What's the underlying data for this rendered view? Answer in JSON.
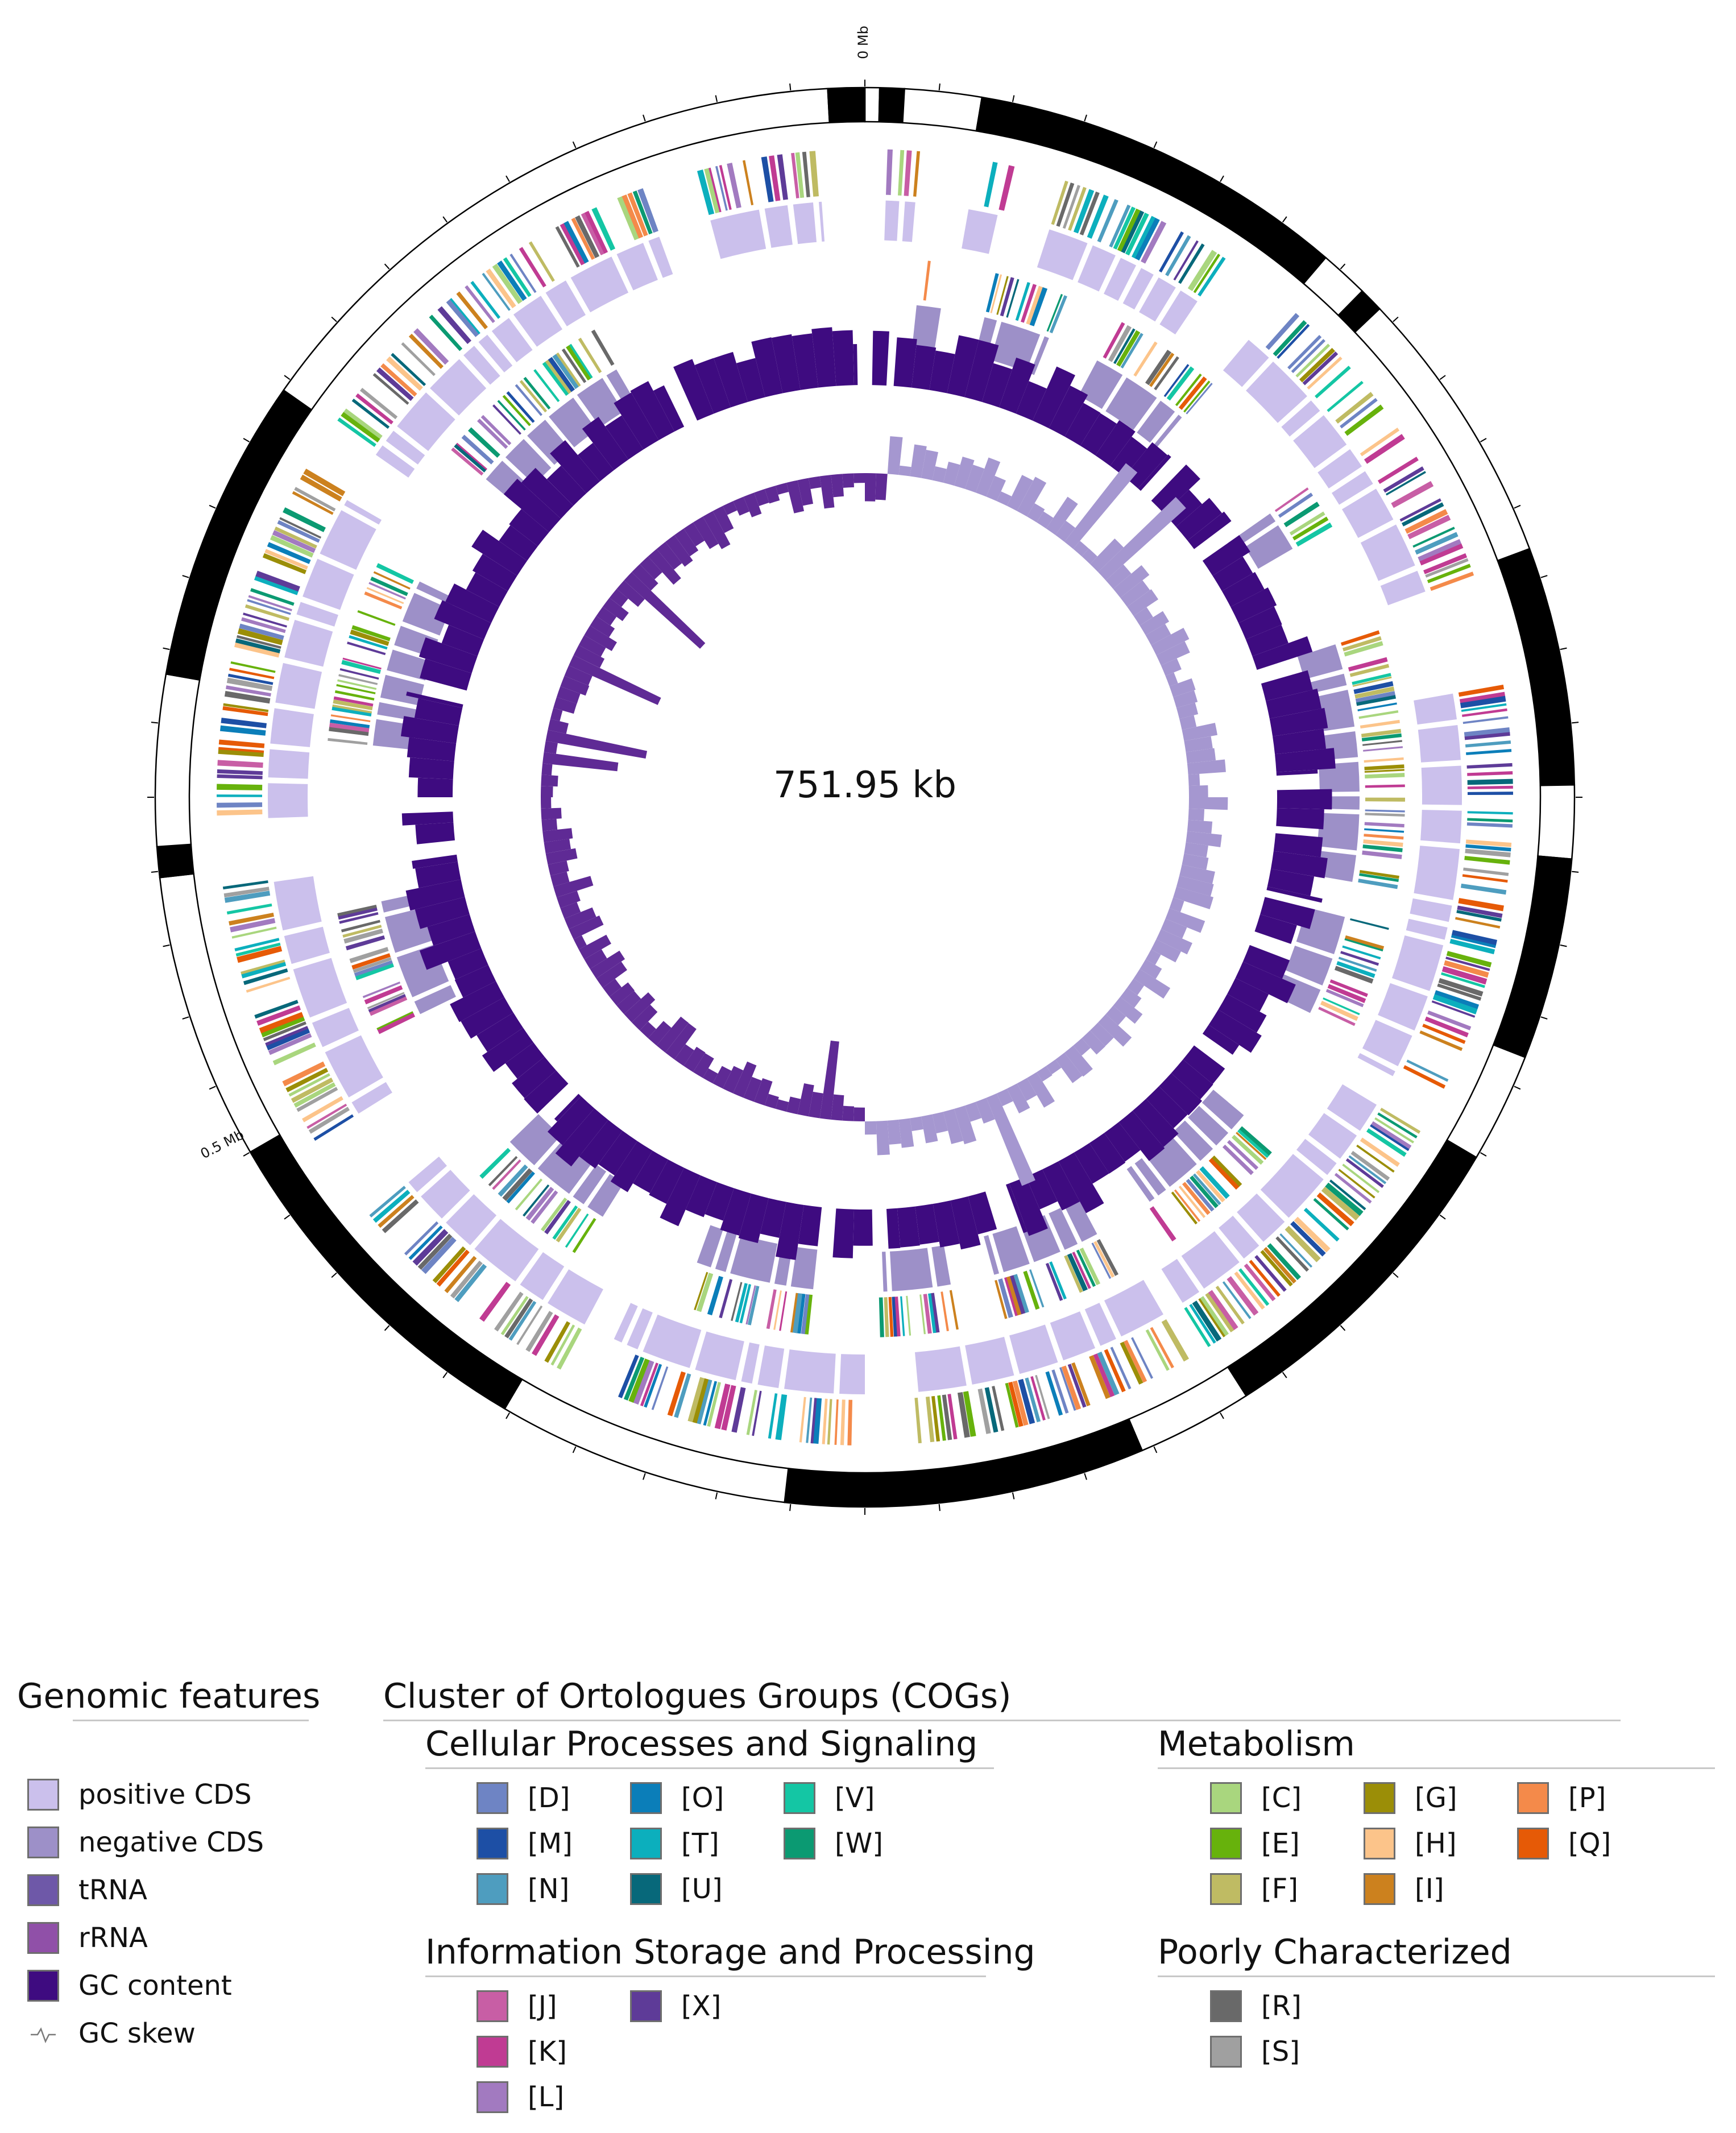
{
  "map": {
    "center_label": "751.95 kb",
    "tick_labels": [
      "0 Mb",
      "0.5 Mb"
    ],
    "genome_length_kb": 751.95,
    "tick_positions_mb": [
      0,
      0.5
    ],
    "colors": {
      "positive_cds": "#cbc0ec",
      "negative_cds": "#9d90c8",
      "trna": "#6e58a8",
      "rrna": "#9050a8",
      "gc_content": "#3e0b80",
      "gc_skew_pos": "#a597d0",
      "gc_skew_neg": "#5f2a95",
      "contig_dark": "#000000",
      "contig_light": "#ffffff"
    }
  },
  "legend": {
    "genomic": {
      "title": "Genomic features",
      "items": [
        {
          "label": "positive CDS",
          "color": "#cbc0ec"
        },
        {
          "label": "negative CDS",
          "color": "#9d90c8"
        },
        {
          "label": "tRNA",
          "color": "#6e58a8"
        },
        {
          "label": "rRNA",
          "color": "#9050a8"
        },
        {
          "label": "GC content",
          "color": "#3e0b80"
        },
        {
          "label": "GC skew",
          "icon": "gc-skew-icon"
        }
      ]
    },
    "cog": {
      "title": "Cluster of Ortologues Groups (COGs)",
      "cellular": {
        "title": "Cellular Processes and Signaling",
        "items": [
          {
            "label": "[D]",
            "color": "#6e84c4"
          },
          {
            "label": "[M]",
            "color": "#1d4fa5"
          },
          {
            "label": "[N]",
            "color": "#4e9dbf"
          },
          {
            "label": "[O]",
            "color": "#0b7eb9"
          },
          {
            "label": "[T]",
            "color": "#0cafbd"
          },
          {
            "label": "[U]",
            "color": "#07687a"
          },
          {
            "label": "[V]",
            "color": "#14c6a4"
          },
          {
            "label": "[W]",
            "color": "#0b9a72"
          }
        ]
      },
      "metabolism": {
        "title": "Metabolism",
        "items": [
          {
            "label": "[C]",
            "color": "#a9d67e"
          },
          {
            "label": "[E]",
            "color": "#67b20c"
          },
          {
            "label": "[F]",
            "color": "#bfbb63"
          },
          {
            "label": "[G]",
            "color": "#9b8e07"
          },
          {
            "label": "[H]",
            "color": "#fcc48a"
          },
          {
            "label": "[I]",
            "color": "#cc811e"
          },
          {
            "label": "[P]",
            "color": "#f48a4a"
          },
          {
            "label": "[Q]",
            "color": "#e65a06"
          }
        ]
      },
      "info": {
        "title": "Information Storage and Processing",
        "items": [
          {
            "label": "[J]",
            "color": "#c85ea5"
          },
          {
            "label": "[K]",
            "color": "#c03b93"
          },
          {
            "label": "[L]",
            "color": "#a27ac0"
          },
          {
            "label": "[X]",
            "color": "#5e3b98"
          }
        ]
      },
      "poor": {
        "title": "Poorly Characterized",
        "items": [
          {
            "label": "[R]",
            "color": "#696969"
          },
          {
            "label": "[S]",
            "color": "#a0a0a0"
          }
        ]
      }
    }
  }
}
